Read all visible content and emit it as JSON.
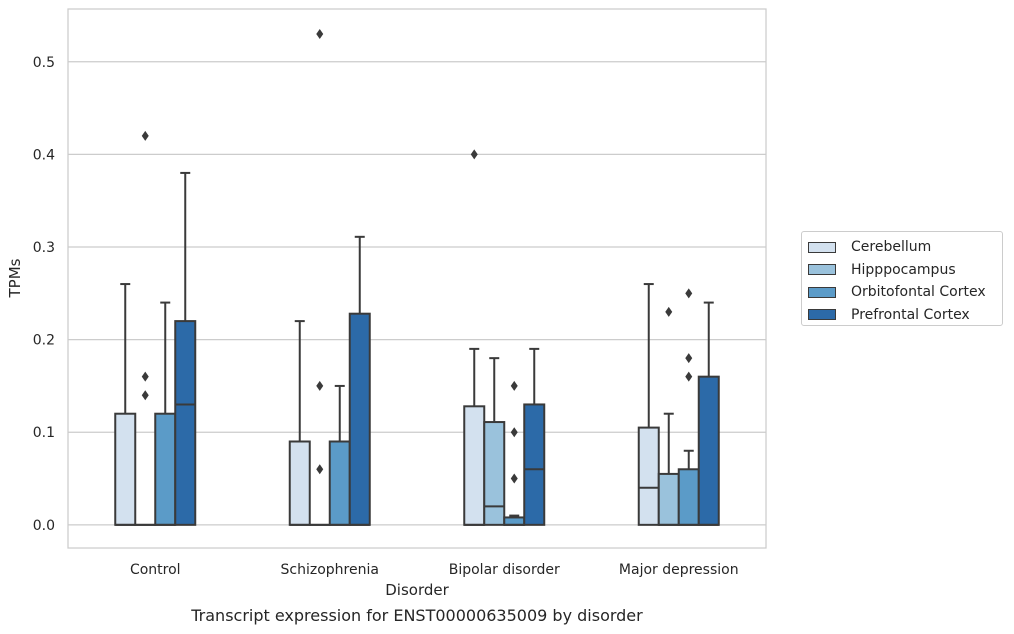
{
  "caption": "Transcript expression for ENST00000635009 by disorder",
  "chart_data": {
    "type": "box",
    "xlabel": "Disorder",
    "ylabel": "TPMs",
    "ylim": [
      -0.025,
      0.557
    ],
    "yticks": [
      0.0,
      0.1,
      0.2,
      0.3,
      0.4,
      0.5
    ],
    "ytick_labels": [
      "0.0",
      "0.1",
      "0.2",
      "0.3",
      "0.4",
      "0.5"
    ],
    "grid": "horizontal",
    "legend_position": "right",
    "categories": [
      "Control",
      "Schizophrenia",
      "Bipolar disorder",
      "Major depression"
    ],
    "series": [
      {
        "name": "Cerebellum",
        "color": "#d3e1ef",
        "boxes": [
          {
            "q1": 0.0,
            "median": 0.0,
            "q3": 0.12,
            "whisker_low": 0.0,
            "whisker_high": 0.26,
            "outliers": []
          },
          {
            "q1": 0.0,
            "median": 0.0,
            "q3": 0.09,
            "whisker_low": 0.0,
            "whisker_high": 0.22,
            "outliers": []
          },
          {
            "q1": 0.0,
            "median": 0.0,
            "q3": 0.128,
            "whisker_low": 0.0,
            "whisker_high": 0.19,
            "outliers": [
              0.4
            ]
          },
          {
            "q1": 0.0,
            "median": 0.04,
            "q3": 0.105,
            "whisker_low": 0.0,
            "whisker_high": 0.26,
            "outliers": []
          }
        ]
      },
      {
        "name": "Hipppocampus",
        "color": "#9ac2dc",
        "boxes": [
          {
            "q1": 0.0,
            "median": 0.0,
            "q3": 0.0,
            "whisker_low": 0.0,
            "whisker_high": 0.0,
            "outliers": [
              0.14,
              0.16,
              0.42
            ]
          },
          {
            "q1": 0.0,
            "median": 0.0,
            "q3": 0.0,
            "whisker_low": 0.0,
            "whisker_high": 0.0,
            "outliers": [
              0.06,
              0.15,
              0.53
            ]
          },
          {
            "q1": 0.0,
            "median": 0.02,
            "q3": 0.111,
            "whisker_low": 0.0,
            "whisker_high": 0.18,
            "outliers": []
          },
          {
            "q1": 0.0,
            "median": 0.0,
            "q3": 0.055,
            "whisker_low": 0.0,
            "whisker_high": 0.12,
            "outliers": [
              0.23
            ]
          }
        ]
      },
      {
        "name": "Orbitofontal Cortex",
        "color": "#5b9bc8",
        "boxes": [
          {
            "q1": 0.0,
            "median": 0.0,
            "q3": 0.12,
            "whisker_low": 0.0,
            "whisker_high": 0.24,
            "outliers": []
          },
          {
            "q1": 0.0,
            "median": 0.0,
            "q3": 0.09,
            "whisker_low": 0.0,
            "whisker_high": 0.15,
            "outliers": []
          },
          {
            "q1": 0.0,
            "median": 0.0,
            "q3": 0.008,
            "whisker_low": 0.0,
            "whisker_high": 0.01,
            "outliers": [
              0.05,
              0.1,
              0.15
            ]
          },
          {
            "q1": 0.0,
            "median": 0.0,
            "q3": 0.06,
            "whisker_low": 0.0,
            "whisker_high": 0.08,
            "outliers": [
              0.16,
              0.18,
              0.25
            ]
          }
        ]
      },
      {
        "name": "Prefrontal Cortex",
        "color": "#2c6aa8",
        "boxes": [
          {
            "q1": 0.0,
            "median": 0.13,
            "q3": 0.22,
            "whisker_low": 0.0,
            "whisker_high": 0.38,
            "outliers": []
          },
          {
            "q1": 0.0,
            "median": 0.0,
            "q3": 0.228,
            "whisker_low": 0.0,
            "whisker_high": 0.311,
            "outliers": []
          },
          {
            "q1": 0.0,
            "median": 0.06,
            "q3": 0.13,
            "whisker_low": 0.0,
            "whisker_high": 0.19,
            "outliers": []
          },
          {
            "q1": 0.0,
            "median": 0.0,
            "q3": 0.16,
            "whisker_low": 0.0,
            "whisker_high": 0.24,
            "outliers": []
          }
        ]
      }
    ]
  }
}
